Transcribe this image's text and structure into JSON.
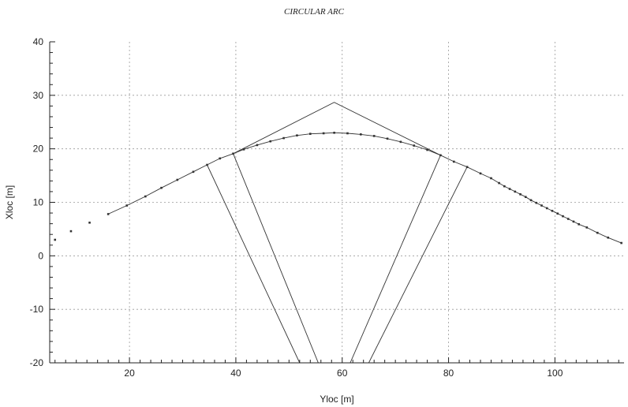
{
  "chart_data": {
    "type": "scatter",
    "title": "CIRCULAR ARC",
    "xlabel": "Yloc [m]",
    "ylabel": "Xloc [m]",
    "xlim": [
      5,
      113
    ],
    "ylim": [
      -20,
      40
    ],
    "x_ticks": [
      20,
      40,
      60,
      80,
      100
    ],
    "y_ticks": [
      40,
      30,
      20,
      10,
      0,
      -10,
      -20
    ],
    "grid": true,
    "series": [
      {
        "style": "line-with-markers",
        "color": "#333333",
        "points": [
          [
            16,
            7.8
          ],
          [
            19.5,
            9.4
          ],
          [
            23,
            11.1
          ],
          [
            26,
            12.7
          ],
          [
            29,
            14.2
          ],
          [
            32,
            15.7
          ],
          [
            34.6,
            17.0
          ],
          [
            37,
            18.2
          ],
          [
            39.5,
            19.1
          ],
          [
            41.5,
            19.9
          ],
          [
            44,
            20.7
          ],
          [
            46.5,
            21.4
          ],
          [
            49,
            22.0
          ],
          [
            51.5,
            22.5
          ],
          [
            54,
            22.8
          ],
          [
            56.5,
            22.9
          ],
          [
            58.5,
            23.0
          ],
          [
            61,
            22.9
          ],
          [
            63.5,
            22.7
          ],
          [
            66,
            22.4
          ],
          [
            68.5,
            21.9
          ],
          [
            71,
            21.3
          ],
          [
            73.5,
            20.6
          ],
          [
            76,
            19.8
          ],
          [
            78.5,
            18.8
          ],
          [
            81,
            17.6
          ],
          [
            83.5,
            16.6
          ],
          [
            86,
            15.4
          ],
          [
            88,
            14.5
          ],
          [
            89.5,
            13.6
          ],
          [
            90.5,
            13.0
          ],
          [
            91.5,
            12.5
          ],
          [
            92.5,
            12.0
          ],
          [
            93.5,
            11.5
          ],
          [
            94.5,
            11.0
          ],
          [
            95.5,
            10.4
          ],
          [
            96.5,
            9.9
          ],
          [
            97.5,
            9.4
          ],
          [
            98.5,
            8.9
          ],
          [
            99.5,
            8.4
          ],
          [
            100.5,
            7.9
          ],
          [
            101.5,
            7.4
          ],
          [
            102.5,
            6.9
          ],
          [
            103.5,
            6.4
          ],
          [
            104.5,
            5.9
          ],
          [
            106,
            5.3
          ],
          [
            108,
            4.3
          ],
          [
            110,
            3.4
          ],
          [
            112.5,
            2.4
          ]
        ]
      },
      {
        "style": "markers",
        "color": "#333333",
        "points": [
          [
            6,
            3.0
          ],
          [
            9,
            4.6
          ],
          [
            12.5,
            6.2
          ]
        ]
      },
      {
        "style": "line",
        "color": "#333333",
        "points": [
          [
            39.5,
            19.1
          ],
          [
            58.5,
            28.7
          ],
          [
            78.5,
            18.8
          ]
        ]
      },
      {
        "style": "line",
        "color": "#333333",
        "points": [
          [
            34.6,
            17.0
          ],
          [
            52.0,
            -20.0
          ]
        ]
      },
      {
        "style": "line",
        "color": "#333333",
        "points": [
          [
            39.5,
            19.1
          ],
          [
            55.5,
            -20.0
          ]
        ]
      },
      {
        "style": "line",
        "color": "#333333",
        "points": [
          [
            78.5,
            18.8
          ],
          [
            61.5,
            -20.0
          ]
        ]
      },
      {
        "style": "line",
        "color": "#333333",
        "points": [
          [
            83.5,
            16.6
          ],
          [
            65.0,
            -20.0
          ]
        ]
      }
    ]
  }
}
